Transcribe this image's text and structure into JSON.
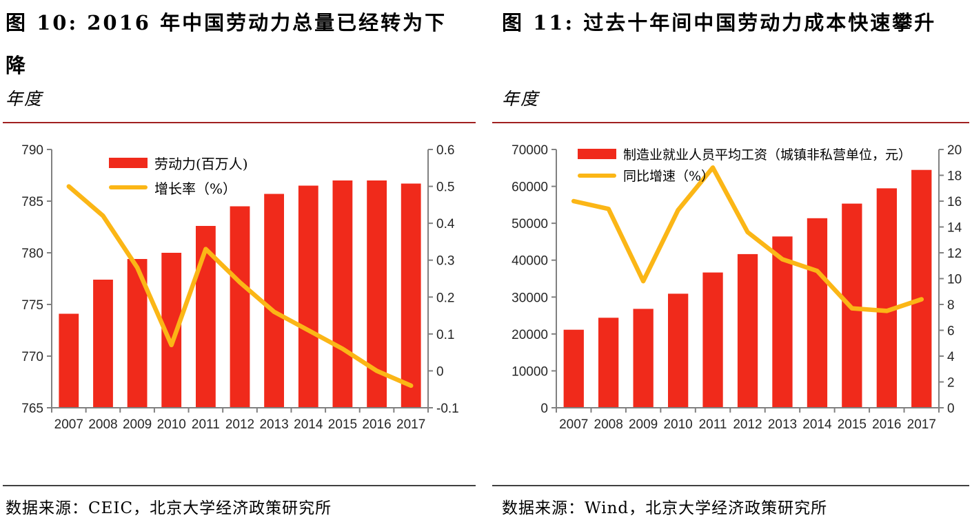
{
  "colors": {
    "bar_red": "#F02A1B",
    "line_yellow": "#FBB616",
    "title_rule_red": "#A02020",
    "divider_gray": "#3F3F3F",
    "axis_gray": "#808080",
    "tick_label_gray": "#262626"
  },
  "figures": [
    {
      "title": "图 10: 2016 年中国劳动力总量已经转为下降",
      "subtitle": "年度",
      "source": "数据来源：CEIC，北京大学经济政策研究所"
    },
    {
      "title": "图 11: 过去十年间中国劳动力成本快速攀升",
      "subtitle": "年度",
      "source": "数据来源：Wind，北京大学经济政策研究所"
    }
  ],
  "chart_data": [
    {
      "type": "combo bar+line",
      "title": "图 10: 2016 年中国劳动力总量已经转为下降",
      "categories": [
        "2007",
        "2008",
        "2009",
        "2010",
        "2011",
        "2012",
        "2013",
        "2014",
        "2015",
        "2016",
        "2017"
      ],
      "series": [
        {
          "name": "劳动力(百万人)",
          "type": "bar",
          "axis": "left",
          "values": [
            774.1,
            777.4,
            779.4,
            780.0,
            782.6,
            784.5,
            785.7,
            786.5,
            787.0,
            787.0,
            786.7
          ]
        },
        {
          "name": "增长率（%）",
          "type": "line",
          "axis": "right",
          "values": [
            0.5,
            0.42,
            0.28,
            0.07,
            0.33,
            0.24,
            0.16,
            0.11,
            0.06,
            0.0,
            -0.04
          ]
        }
      ],
      "left_axis": {
        "min": 765,
        "max": 790,
        "tick_labels": [
          "790",
          "785",
          "780",
          "775",
          "770",
          "765"
        ]
      },
      "right_axis": {
        "min": -0.1,
        "max": 0.6,
        "tick_labels": [
          "0.6",
          "0.5",
          "0.4",
          "0.3",
          "0.2",
          "0.1",
          "0",
          "-0.1"
        ]
      },
      "legend_position": "top-inside",
      "grid": false
    },
    {
      "type": "combo bar+line",
      "title": "图 11: 过去十年间中国劳动力成本快速攀升",
      "categories": [
        "2007",
        "2008",
        "2009",
        "2010",
        "2011",
        "2012",
        "2013",
        "2014",
        "2015",
        "2016",
        "2017"
      ],
      "series": [
        {
          "name": "制造业就业人员平均工资（城镇非私营单位，元）",
          "type": "bar",
          "axis": "left",
          "values": [
            21144,
            24404,
            26810,
            30916,
            36665,
            41650,
            46431,
            51369,
            55324,
            59470,
            64452
          ]
        },
        {
          "name": "同比增速（%）",
          "type": "line",
          "axis": "right",
          "values": [
            16.0,
            15.4,
            9.8,
            15.3,
            18.6,
            13.6,
            11.5,
            10.6,
            7.7,
            7.5,
            8.4
          ]
        }
      ],
      "left_axis": {
        "min": 0,
        "max": 70000,
        "tick_labels": [
          "70000",
          "60000",
          "50000",
          "40000",
          "30000",
          "20000",
          "10000",
          "0"
        ]
      },
      "right_axis": {
        "min": 0,
        "max": 20,
        "tick_labels": [
          "20",
          "18",
          "16",
          "14",
          "12",
          "10",
          "8",
          "6",
          "4",
          "2",
          "0"
        ]
      },
      "legend_position": "top-inside",
      "grid": false
    }
  ]
}
